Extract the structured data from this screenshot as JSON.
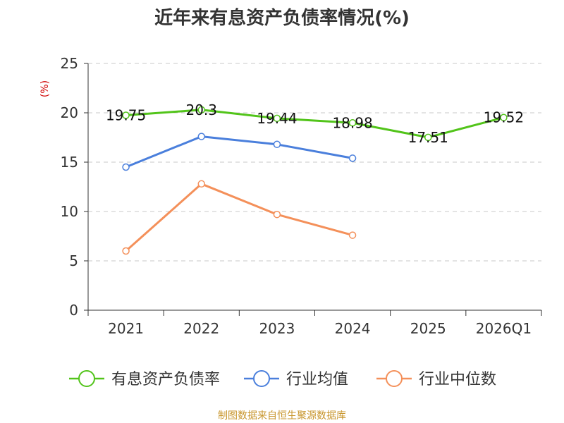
{
  "chart_data": {
    "type": "line",
    "title": "近年来有息资产负债率情况(%)",
    "ylabel": "(%)",
    "ylim": [
      0,
      25
    ],
    "yticks": [
      "0",
      "5",
      "10",
      "15",
      "20",
      "25"
    ],
    "categories": [
      "2021",
      "2022",
      "2023",
      "2024",
      "2025",
      "2026Q1"
    ],
    "grid": true,
    "legend_position": "bottom",
    "series": [
      {
        "name": "有息资产负债率",
        "color": "#52c41a",
        "values": [
          19.75,
          20.3,
          19.44,
          18.98,
          17.51,
          19.52
        ],
        "labels": [
          "19.75",
          "20.3",
          "19.44",
          "18.98",
          "17.51",
          "19.52"
        ]
      },
      {
        "name": "行业均值",
        "color": "#4a7fdc",
        "values": [
          14.5,
          17.6,
          16.8,
          15.4,
          null,
          null
        ]
      },
      {
        "name": "行业中位数",
        "color": "#f4905a",
        "values": [
          6.0,
          12.8,
          9.7,
          7.6,
          null,
          null
        ]
      }
    ]
  },
  "source": {
    "text": "制图数据来自恒生聚源数据库",
    "color": "#c8962d"
  },
  "unit_color": "#d00000"
}
